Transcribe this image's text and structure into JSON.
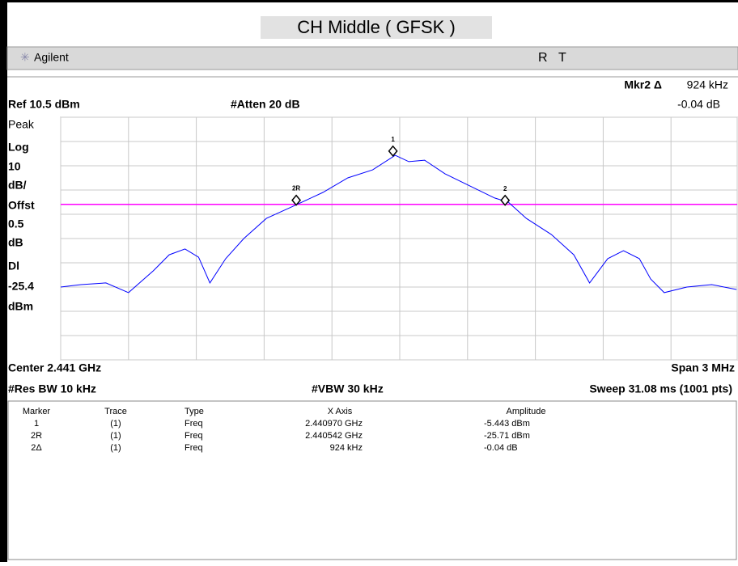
{
  "header": {
    "title": "CH Middle ( GFSK )"
  },
  "toolbar": {
    "brand": "Agilent",
    "status": [
      "R",
      "T"
    ]
  },
  "info": {
    "marker_label": "Mkr2 Δ",
    "marker_value": "924 kHz",
    "marker_amplitude": "-0.04 dB",
    "ref": "Ref 10.5 dBm",
    "atten": "#Atten 20 dB",
    "side": [
      "Peak",
      "Log",
      "10",
      "dB/",
      "Offst",
      "0.5",
      "dB",
      "Dl",
      -25.4,
      "dBm"
    ],
    "center": "Center 2.441 GHz",
    "span": "Span 3 MHz",
    "rbw": "#Res BW 10 kHz",
    "vbw": "#VBW 30 kHz",
    "sweep": "Sweep 31.08 ms (1001 pts)"
  },
  "chart_data": {
    "type": "line",
    "x": [
      2.4395,
      2.43959,
      2.4397,
      2.4398,
      2.43991,
      2.43998,
      2.44005,
      2.44011,
      2.44016,
      2.44023,
      2.44031,
      2.44041,
      2.44054,
      2.44066,
      2.44077,
      2.44088,
      2.44098,
      2.44104,
      2.44111,
      2.4412,
      2.44131,
      2.44142,
      2.44148,
      2.44156,
      2.44167,
      2.44177,
      2.44184,
      2.44192,
      2.44199,
      2.44206,
      2.44211,
      2.44217,
      2.44227,
      2.44238,
      2.44249
    ],
    "series": [
      {
        "color": "#0000ff",
        "values": [
          -59.5,
          -58.5,
          -57.8,
          -61.8,
          -52.8,
          -46.2,
          -43.8,
          -47.2,
          -57.8,
          -47.8,
          -39.5,
          -31.2,
          -25.7,
          -20.5,
          -14.5,
          -11.2,
          -5.2,
          -7.8,
          -7.2,
          -12.8,
          -17.8,
          -22.8,
          -24.5,
          -31.2,
          -37.8,
          -46.2,
          -57.8,
          -47.8,
          -44.5,
          -47.8,
          -56.2,
          -61.8,
          -59.5,
          -58.5,
          -60.5
        ]
      }
    ],
    "xlim": [
      2.4395,
      2.4425
    ],
    "ylim": [
      -89.5,
      10.5
    ],
    "xticks": [
      2.4395,
      2.4398,
      2.4401,
      2.4404,
      2.4407,
      2.441,
      2.4413,
      2.4416,
      2.4419,
      2.4422,
      2.4425
    ],
    "yticks": [
      10.5,
      0.5,
      -9.5,
      -19.5,
      -29.5,
      -39.5,
      -49.5,
      -59.5,
      -69.5,
      -79.5,
      -89.5
    ],
    "grid": true,
    "display_line_color": "#ff00ff",
    "marker_color": "#000000",
    "markers": [
      {
        "label": "1",
        "x": 2.44097,
        "y": -5.443
      },
      {
        "label": "2R",
        "x": 2.440542,
        "y": -25.71
      },
      {
        "label": "2",
        "x": 2.441466,
        "y": -25.75
      }
    ]
  },
  "table": {
    "columns": [
      "Marker",
      "Trace",
      "Type",
      "X Axis",
      "Amplitude"
    ],
    "rows": [
      [
        "1",
        "(1)",
        "Freq",
        "2.440970 GHz",
        "-5.443 dBm"
      ],
      [
        "2R",
        "(1)",
        "Freq",
        "2.440542 GHz",
        "-25.71 dBm"
      ],
      [
        "2Δ",
        "(1)",
        "Freq",
        "924 kHz",
        "-0.04 dB"
      ]
    ]
  }
}
